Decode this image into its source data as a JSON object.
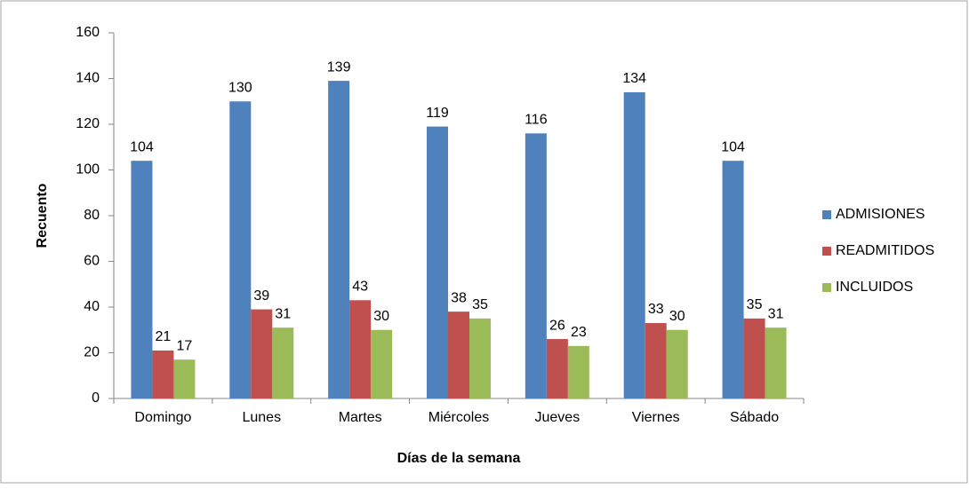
{
  "chart_data": {
    "type": "bar",
    "x_label": "Días de la semana",
    "y_label": "Recuento",
    "categories": [
      "Domingo",
      "Lunes",
      "Martes",
      "Miércoles",
      "Jueves",
      "Viernes",
      "Sábado"
    ],
    "series": [
      {
        "name": "ADMISIONES",
        "color": "#4f81bd",
        "values": [
          104,
          130,
          139,
          119,
          116,
          134,
          104
        ]
      },
      {
        "name": "READMITIDOS",
        "color": "#c0504d",
        "values": [
          21,
          39,
          43,
          38,
          26,
          33,
          35
        ]
      },
      {
        "name": "INCLUIDOS",
        "color": "#9bbb59",
        "values": [
          17,
          31,
          30,
          35,
          23,
          30,
          31
        ]
      }
    ],
    "ylim": [
      0,
      160
    ],
    "yticks": [
      0,
      20,
      40,
      60,
      80,
      100,
      120,
      140,
      160
    ],
    "legend": "right"
  }
}
